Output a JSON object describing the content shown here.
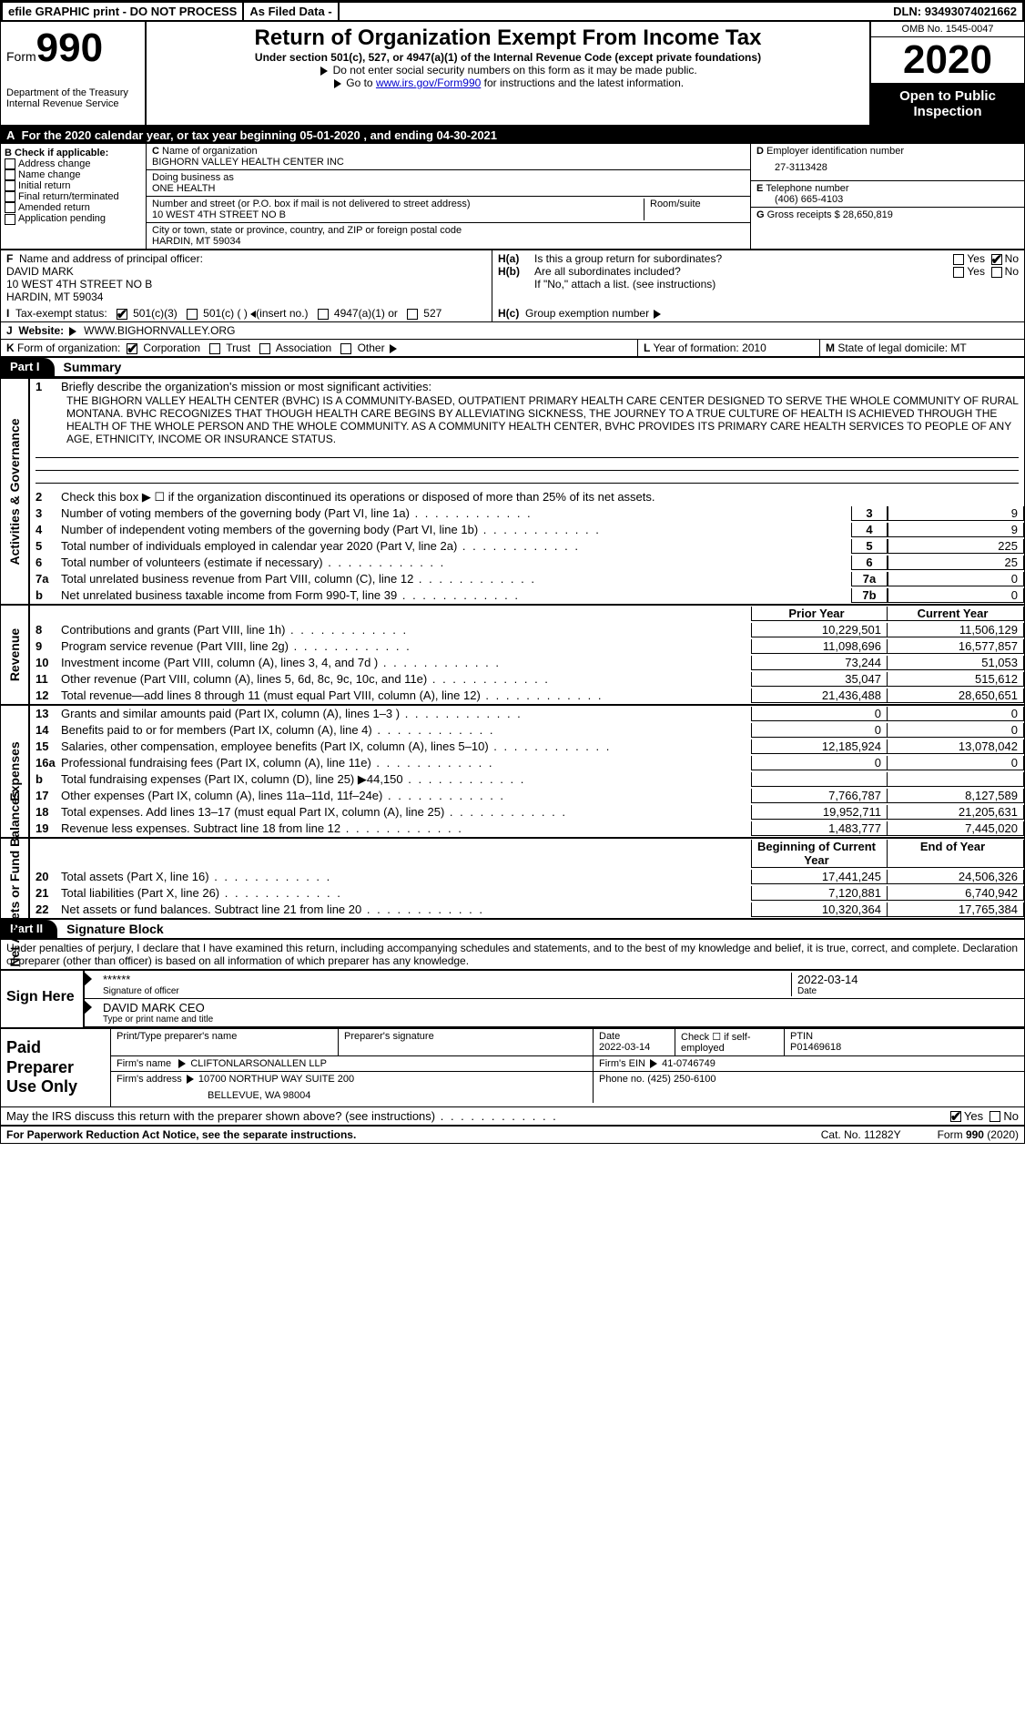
{
  "topbar": {
    "efile": "efile GRAPHIC print - DO NOT PROCESS",
    "asfiled": "As Filed Data -",
    "dln_label": "DLN:",
    "dln": "93493074021662"
  },
  "header": {
    "form_word": "Form",
    "form_num": "990",
    "dept": "Department of the Treasury\nInternal Revenue Service",
    "title": "Return of Organization Exempt From Income Tax",
    "sub1": "Under section 501(c), 527, or 4947(a)(1) of the Internal Revenue Code (except private foundations)",
    "sub2": "Do not enter social security numbers on this form as it may be made public.",
    "sub3_pre": "Go to ",
    "sub3_link": "www.irs.gov/Form990",
    "sub3_post": " for instructions and the latest information.",
    "omb": "OMB No. 1545-0047",
    "year": "2020",
    "open": "Open to Public Inspection"
  },
  "row_a": "For the 2020 calendar year, or tax year beginning 05-01-2020   , and ending 04-30-2021",
  "col_b": {
    "hdr": "Check if applicable:",
    "items": [
      "Address change",
      "Name change",
      "Initial return",
      "Final return/terminated",
      "Amended return",
      "Application pending"
    ]
  },
  "col_c": {
    "name_lbl": "Name of organization",
    "name": "BIGHORN VALLEY HEALTH CENTER INC",
    "dba_lbl": "Doing business as",
    "dba": "ONE HEALTH",
    "street_lbl": "Number and street (or P.O. box if mail is not delivered to street address)",
    "room_lbl": "Room/suite",
    "street": "10 WEST 4TH STREET NO B",
    "city_lbl": "City or town, state or province, country, and ZIP or foreign postal code",
    "city": "HARDIN, MT  59034"
  },
  "col_de": {
    "d_lbl": "Employer identification number",
    "d_val": "27-3113428",
    "e_lbl": "Telephone number",
    "e_val": "(406) 665-4103",
    "g_lbl": "Gross receipts $",
    "g_val": "28,650,819"
  },
  "f": {
    "lbl": "Name and address of principal officer:",
    "name": "DAVID MARK",
    "street": "10 WEST 4TH STREET NO B",
    "city": "HARDIN, MT  59034"
  },
  "h": {
    "a": "Is this a group return for subordinates?",
    "b": "Are all subordinates included?",
    "b_note": "If \"No,\" attach a list. (see instructions)",
    "c": "Group exemption number",
    "yes": "Yes",
    "no": "No"
  },
  "i": {
    "lbl": "Tax-exempt status:",
    "opts": [
      "501(c)(3)",
      "501(c) (   )",
      "(insert no.)",
      "4947(a)(1) or",
      "527"
    ]
  },
  "j": {
    "lbl": "Website:",
    "val": "WWW.BIGHORNVALLEY.ORG"
  },
  "k": {
    "lbl": "Form of organization:",
    "opts": [
      "Corporation",
      "Trust",
      "Association",
      "Other"
    ]
  },
  "l": {
    "lbl": "Year of formation:",
    "val": "2010"
  },
  "m": {
    "lbl": "State of legal domicile:",
    "val": "MT"
  },
  "part1": {
    "tab": "Part I",
    "title": "Summary"
  },
  "mission": {
    "lbl": "Briefly describe the organization's mission or most significant activities:",
    "text": "THE BIGHORN VALLEY HEALTH CENTER (BVHC) IS A COMMUNITY-BASED, OUTPATIENT PRIMARY HEALTH CARE CENTER DESIGNED TO SERVE THE WHOLE COMMUNITY OF RURAL MONTANA. BVHC RECOGNIZES THAT THOUGH HEALTH CARE BEGINS BY ALLEVIATING SICKNESS, THE JOURNEY TO A TRUE CULTURE OF HEALTH IS ACHIEVED THROUGH THE HEALTH OF THE WHOLE PERSON AND THE WHOLE COMMUNITY. AS A COMMUNITY HEALTH CENTER, BVHC PROVIDES ITS PRIMARY CARE HEALTH SERVICES TO PEOPLE OF ANY AGE, ETHNICITY, INCOME OR INSURANCE STATUS."
  },
  "line2": "Check this box ▶ ☐ if the organization discontinued its operations or disposed of more than 25% of its net assets.",
  "side": {
    "gov": "Activities & Governance",
    "rev": "Revenue",
    "exp": "Expenses",
    "net": "Net Assets or Fund Balances"
  },
  "gov_lines": [
    {
      "n": "3",
      "t": "Number of voting members of the governing body (Part VI, line 1a)",
      "box": "3",
      "v": "9"
    },
    {
      "n": "4",
      "t": "Number of independent voting members of the governing body (Part VI, line 1b)",
      "box": "4",
      "v": "9"
    },
    {
      "n": "5",
      "t": "Total number of individuals employed in calendar year 2020 (Part V, line 2a)",
      "box": "5",
      "v": "225"
    },
    {
      "n": "6",
      "t": "Total number of volunteers (estimate if necessary)",
      "box": "6",
      "v": "25"
    },
    {
      "n": "7a",
      "t": "Total unrelated business revenue from Part VIII, column (C), line 12",
      "box": "7a",
      "v": "0"
    },
    {
      "n": "b",
      "t": "Net unrelated business taxable income from Form 990-T, line 39",
      "box": "7b",
      "v": "0"
    }
  ],
  "col_hdrs": {
    "prior": "Prior Year",
    "curr": "Current Year",
    "beg": "Beginning of Current Year",
    "end": "End of Year"
  },
  "rev_lines": [
    {
      "n": "8",
      "t": "Contributions and grants (Part VIII, line 1h)",
      "p": "10,229,501",
      "c": "11,506,129"
    },
    {
      "n": "9",
      "t": "Program service revenue (Part VIII, line 2g)",
      "p": "11,098,696",
      "c": "16,577,857"
    },
    {
      "n": "10",
      "t": "Investment income (Part VIII, column (A), lines 3, 4, and 7d )",
      "p": "73,244",
      "c": "51,053"
    },
    {
      "n": "11",
      "t": "Other revenue (Part VIII, column (A), lines 5, 6d, 8c, 9c, 10c, and 11e)",
      "p": "35,047",
      "c": "515,612"
    },
    {
      "n": "12",
      "t": "Total revenue—add lines 8 through 11 (must equal Part VIII, column (A), line 12)",
      "p": "21,436,488",
      "c": "28,650,651"
    }
  ],
  "exp_lines": [
    {
      "n": "13",
      "t": "Grants and similar amounts paid (Part IX, column (A), lines 1–3 )",
      "p": "0",
      "c": "0"
    },
    {
      "n": "14",
      "t": "Benefits paid to or for members (Part IX, column (A), line 4)",
      "p": "0",
      "c": "0"
    },
    {
      "n": "15",
      "t": "Salaries, other compensation, employee benefits (Part IX, column (A), lines 5–10)",
      "p": "12,185,924",
      "c": "13,078,042"
    },
    {
      "n": "16a",
      "t": "Professional fundraising fees (Part IX, column (A), line 11e)",
      "p": "0",
      "c": "0"
    },
    {
      "n": "b",
      "t": "Total fundraising expenses (Part IX, column (D), line 25) ▶44,150",
      "p": "",
      "c": ""
    },
    {
      "n": "17",
      "t": "Other expenses (Part IX, column (A), lines 11a–11d, 11f–24e)",
      "p": "7,766,787",
      "c": "8,127,589"
    },
    {
      "n": "18",
      "t": "Total expenses. Add lines 13–17 (must equal Part IX, column (A), line 25)",
      "p": "19,952,711",
      "c": "21,205,631"
    },
    {
      "n": "19",
      "t": "Revenue less expenses. Subtract line 18 from line 12",
      "p": "1,483,777",
      "c": "7,445,020"
    }
  ],
  "net_lines": [
    {
      "n": "20",
      "t": "Total assets (Part X, line 16)",
      "p": "17,441,245",
      "c": "24,506,326"
    },
    {
      "n": "21",
      "t": "Total liabilities (Part X, line 26)",
      "p": "7,120,881",
      "c": "6,740,942"
    },
    {
      "n": "22",
      "t": "Net assets or fund balances. Subtract line 21 from line 20",
      "p": "10,320,364",
      "c": "17,765,384"
    }
  ],
  "part2": {
    "tab": "Part II",
    "title": "Signature Block"
  },
  "sig": {
    "penalty": "Under penalties of perjury, I declare that I have examined this return, including accompanying schedules and statements, and to the best of my knowledge and belief, it is true, correct, and complete. Declaration of preparer (other than officer) is based on all information of which preparer has any knowledge.",
    "sign_here": "Sign Here",
    "stars": "******",
    "sig_lbl": "Signature of officer",
    "date": "2022-03-14",
    "date_lbl": "Date",
    "name": "DAVID MARK CEO",
    "name_lbl": "Type or print name and title"
  },
  "prep": {
    "hdr": "Paid Preparer Use Only",
    "c1": "Print/Type preparer's name",
    "c2": "Preparer's signature",
    "c3": "Date",
    "c3v": "2022-03-14",
    "c4": "Check ☐ if self-employed",
    "c5": "PTIN",
    "c5v": "P01469618",
    "firm_lbl": "Firm's name",
    "firm": "CLIFTONLARSONALLEN LLP",
    "ein_lbl": "Firm's EIN",
    "ein": "41-0746749",
    "addr_lbl": "Firm's address",
    "addr1": "10700 NORTHUP WAY SUITE 200",
    "addr2": "BELLEVUE, WA  98004",
    "phone_lbl": "Phone no.",
    "phone": "(425) 250-6100"
  },
  "discuss": {
    "q": "May the IRS discuss this return with the preparer shown above? (see instructions)",
    "yes": "Yes",
    "no": "No"
  },
  "footer": {
    "left": "For Paperwork Reduction Act Notice, see the separate instructions.",
    "mid": "Cat. No. 11282Y",
    "right": "Form 990 (2020)"
  }
}
